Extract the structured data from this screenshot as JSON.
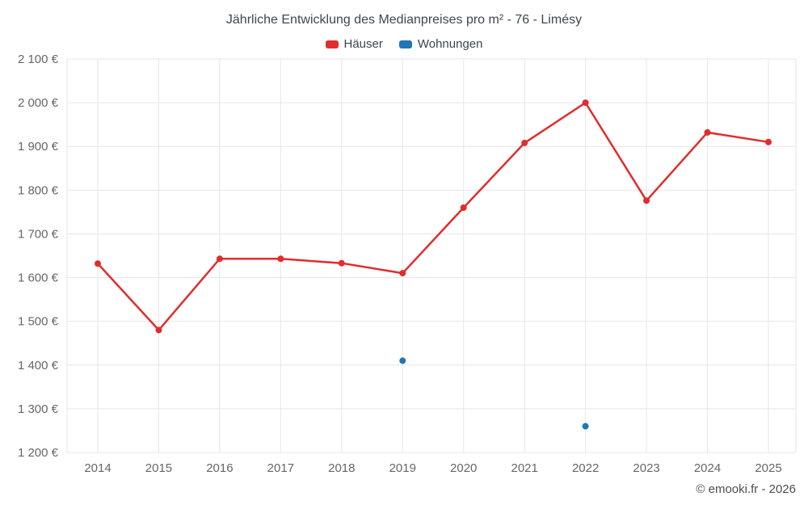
{
  "chart_data": {
    "type": "line",
    "title": "Jährliche Entwicklung des Medianpreises pro m² - 76 - Limésy",
    "categories": [
      "2014",
      "2015",
      "2016",
      "2017",
      "2018",
      "2019",
      "2020",
      "2021",
      "2022",
      "2023",
      "2024",
      "2025"
    ],
    "series": [
      {
        "name": "Häuser",
        "color": "#e02d2d",
        "values": [
          1632,
          1480,
          1643,
          1643,
          1633,
          1610,
          1760,
          1908,
          2000,
          1776,
          1932,
          1910
        ]
      },
      {
        "name": "Wohnungen",
        "color": "#1f77b4",
        "values": [
          null,
          null,
          null,
          null,
          null,
          1410,
          null,
          null,
          1260,
          null,
          null,
          null
        ]
      }
    ],
    "ylim": [
      1200,
      2100
    ],
    "y_tick_step": 100,
    "y_tick_labels": [
      "1 200 €",
      "1 300 €",
      "1 400 €",
      "1 500 €",
      "1 600 €",
      "1 700 €",
      "1 800 €",
      "1 900 €",
      "2 000 €",
      "2 100 €"
    ],
    "grid": true,
    "legend_position": "top",
    "xlabel": "",
    "ylabel": ""
  },
  "footer": {
    "copyright": "© emooki.fr - 2026"
  },
  "colors": {
    "grid": "#e6e6e6",
    "axis_text": "#666666",
    "title_text": "#3d4752"
  }
}
